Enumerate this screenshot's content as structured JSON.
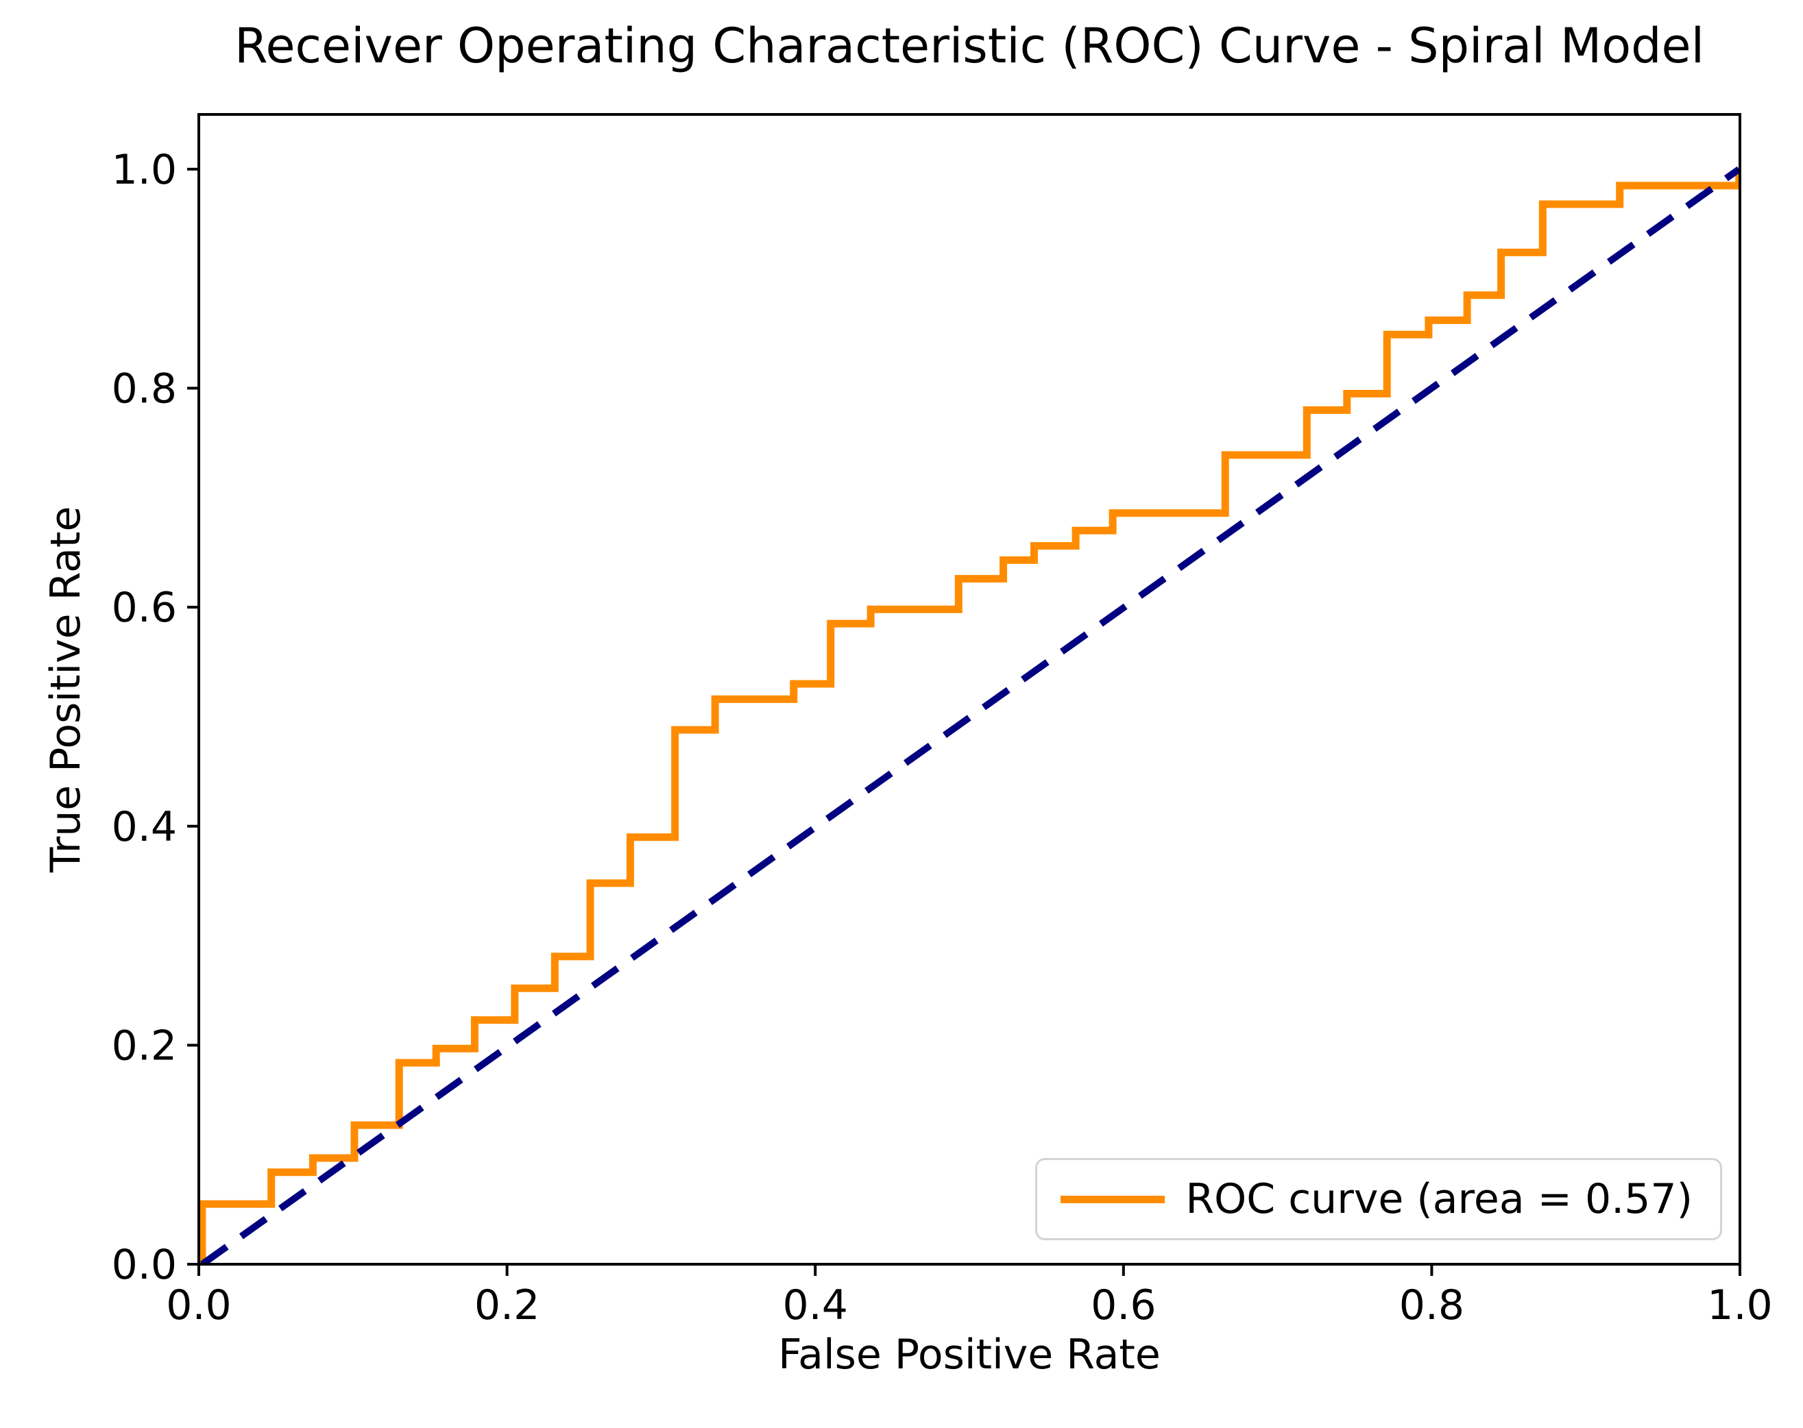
{
  "figure": {
    "background": "#ffffff",
    "title": "Receiver Operating Characteristic (ROC) Curve - Spiral Model",
    "x_axis": {
      "label": "False Positive Rate",
      "tick_labels": [
        "0.0",
        "0.2",
        "0.4",
        "0.6",
        "0.8",
        "1.0"
      ]
    },
    "y_axis": {
      "label": "True Positive Rate",
      "tick_labels": [
        "0.0",
        "0.2",
        "0.4",
        "0.6",
        "0.8",
        "1.0"
      ]
    },
    "legend": {
      "label": "ROC curve (area = 0.57)",
      "line_color": "#ff8c00"
    }
  },
  "chart_data": {
    "type": "line",
    "title": "Receiver Operating Characteristic (ROC) Curve - Spiral Model",
    "xlabel": "False Positive Rate",
    "ylabel": "True Positive Rate",
    "xlim": [
      0.0,
      1.0
    ],
    "ylim": [
      0.0,
      1.05
    ],
    "x_ticks": [
      0.0,
      0.2,
      0.4,
      0.6,
      0.8,
      1.0
    ],
    "y_ticks": [
      0.0,
      0.2,
      0.4,
      0.6,
      0.8,
      1.0
    ],
    "grid": false,
    "legend_position": "lower right",
    "auc": 0.57,
    "axis_color": "#000000",
    "series": [
      {
        "name": "ROC curve (area = 0.57)",
        "role": "roc-curve",
        "color": "#ff8c00",
        "linestyle": "solid",
        "linewidth": 2,
        "x": [
          0.0,
          0.0,
          0.047,
          0.047,
          0.074,
          0.074,
          0.101,
          0.101,
          0.13,
          0.13,
          0.154,
          0.154,
          0.179,
          0.179,
          0.205,
          0.205,
          0.231,
          0.231,
          0.254,
          0.254,
          0.28,
          0.28,
          0.309,
          0.309,
          0.335,
          0.335,
          0.386,
          0.386,
          0.41,
          0.41,
          0.436,
          0.436,
          0.493,
          0.493,
          0.522,
          0.522,
          0.542,
          0.542,
          0.569,
          0.569,
          0.593,
          0.593,
          0.666,
          0.666,
          0.719,
          0.719,
          0.745,
          0.745,
          0.771,
          0.771,
          0.798,
          0.798,
          0.823,
          0.823,
          0.845,
          0.845,
          0.872,
          0.872,
          0.922,
          0.922,
          1.0,
          1.0
        ],
        "y": [
          0.0,
          0.055,
          0.055,
          0.084,
          0.084,
          0.097,
          0.097,
          0.127,
          0.127,
          0.184,
          0.184,
          0.197,
          0.197,
          0.223,
          0.223,
          0.252,
          0.252,
          0.281,
          0.281,
          0.348,
          0.348,
          0.39,
          0.39,
          0.488,
          0.488,
          0.516,
          0.516,
          0.53,
          0.53,
          0.585,
          0.585,
          0.598,
          0.598,
          0.626,
          0.626,
          0.643,
          0.643,
          0.656,
          0.656,
          0.67,
          0.67,
          0.686,
          0.686,
          0.739,
          0.739,
          0.78,
          0.78,
          0.795,
          0.795,
          0.849,
          0.849,
          0.862,
          0.862,
          0.885,
          0.885,
          0.924,
          0.924,
          0.968,
          0.968,
          0.985,
          0.985,
          1.0
        ]
      },
      {
        "name": "chance-diagonal",
        "role": "chance-diagonal",
        "color": "#000080",
        "linestyle": "dashed",
        "linewidth": 2,
        "x": [
          0.0,
          1.0
        ],
        "y": [
          0.0,
          1.0
        ]
      }
    ]
  }
}
